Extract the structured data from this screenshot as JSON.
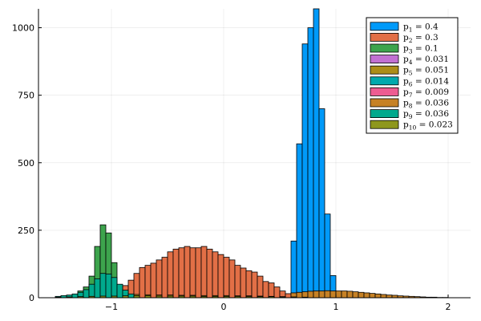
{
  "chart_data": {
    "type": "bar",
    "subtype": "overlaid-histogram",
    "title": "",
    "xlabel": "",
    "ylabel": "",
    "xlim": [
      -1.65,
      2.2
    ],
    "ylim": [
      0,
      1070
    ],
    "xticks": [
      -1,
      0,
      1,
      2
    ],
    "yticks": [
      0,
      250,
      500,
      750,
      1000
    ],
    "xtick_labels": [
      "−1",
      "0",
      "1",
      "2"
    ],
    "ytick_labels": [
      "0",
      "250",
      "500",
      "750",
      "1000"
    ],
    "grid": true,
    "legend_position": "top-right",
    "bin_width": 0.05,
    "series": [
      {
        "name": "p1 = 0.4",
        "label_base": "p",
        "label_sub": "1",
        "label_value": "= 0.4",
        "color": "#009af9",
        "bin_starts": [
          0.6,
          0.65,
          0.7,
          0.75,
          0.8,
          0.85,
          0.9,
          0.95,
          1.0
        ],
        "values": [
          210,
          570,
          940,
          1000,
          1070,
          700,
          310,
          82,
          0
        ]
      },
      {
        "name": "p2 = 0.3",
        "label_base": "p",
        "label_sub": "2",
        "label_value": "= 0.3",
        "color": "#e26f46",
        "bin_starts": [
          -1.0,
          -0.95,
          -0.9,
          -0.85,
          -0.8,
          -0.75,
          -0.7,
          -0.65,
          -0.6,
          -0.55,
          -0.5,
          -0.45,
          -0.4,
          -0.35,
          -0.3,
          -0.25,
          -0.2,
          -0.15,
          -0.1,
          -0.05,
          0.0,
          0.05,
          0.1,
          0.15,
          0.2,
          0.25,
          0.3,
          0.35,
          0.4,
          0.45,
          0.5,
          0.55,
          0.6
        ],
        "values": [
          10,
          30,
          45,
          65,
          90,
          112,
          120,
          128,
          140,
          150,
          170,
          180,
          185,
          190,
          185,
          185,
          190,
          180,
          170,
          160,
          150,
          140,
          120,
          110,
          100,
          95,
          80,
          60,
          55,
          40,
          25,
          15,
          5
        ]
      },
      {
        "name": "p3 = 0.1",
        "label_base": "p",
        "label_sub": "3",
        "label_value": "= 0.1",
        "color": "#3da44d",
        "bin_starts": [
          -1.35,
          -1.3,
          -1.25,
          -1.2,
          -1.15,
          -1.1,
          -1.05,
          -1.0,
          -0.95,
          -0.9,
          -0.85
        ],
        "values": [
          10,
          25,
          40,
          80,
          190,
          270,
          240,
          130,
          45,
          20,
          5
        ]
      },
      {
        "name": "p4 = 0.031",
        "label_base": "p",
        "label_sub": "4",
        "label_value": "= 0.031",
        "color": "#c271d2",
        "bin_starts": [
          -1.3,
          -1.25,
          -1.2,
          -1.15,
          -1.1,
          -1.05,
          -1.0,
          -0.95
        ],
        "values": [
          5,
          12,
          22,
          32,
          30,
          22,
          12,
          5
        ]
      },
      {
        "name": "p5 = 0.051",
        "label_base": "p",
        "label_sub": "5",
        "label_value": "= 0.051",
        "color": "#ac8d18",
        "bin_starts": [
          -1.5,
          -1.4,
          -1.3,
          -1.2,
          -1.1,
          -1.0,
          -0.9,
          -0.8,
          -0.7,
          -0.6,
          -0.5,
          -0.4,
          -0.3,
          -0.2,
          -0.1,
          0.0,
          0.1,
          0.2,
          0.3,
          0.4,
          0.5
        ],
        "values": [
          2,
          4,
          6,
          8,
          10,
          12,
          12,
          12,
          11,
          10,
          10,
          9,
          9,
          8,
          8,
          8,
          7,
          7,
          6,
          5,
          4
        ]
      },
      {
        "name": "p6 = 0.014",
        "label_base": "p",
        "label_sub": "6",
        "label_value": "= 0.014",
        "color": "#00a9ad",
        "bin_starts": [
          -1.45,
          -1.4,
          -1.35,
          -1.3,
          -1.25,
          -1.2,
          -1.15,
          -1.1,
          -1.05,
          -1.0
        ],
        "values": [
          3,
          6,
          8,
          12,
          16,
          18,
          16,
          12,
          8,
          4
        ]
      },
      {
        "name": "p7 = 0.009",
        "label_base": "p",
        "label_sub": "7",
        "label_value": "= 0.009",
        "color": "#ed5d92",
        "bin_starts": [
          -1.4,
          -1.35,
          -1.3,
          -1.25,
          -1.2,
          -1.15,
          -1.1,
          -1.05,
          -1.0
        ],
        "values": [
          4,
          8,
          10,
          14,
          16,
          16,
          12,
          8,
          4
        ]
      },
      {
        "name": "p8 = 0.036",
        "label_base": "p",
        "label_sub": "8",
        "label_value": "= 0.036",
        "color": "#c68125",
        "bin_starts": [
          0.6,
          0.65,
          0.7,
          0.75,
          0.8,
          0.85,
          0.9,
          0.95,
          1.0,
          1.05,
          1.1,
          1.15,
          1.2,
          1.25,
          1.3,
          1.35,
          1.4,
          1.45,
          1.5,
          1.55,
          1.6,
          1.65,
          1.7,
          1.75,
          1.8,
          1.85,
          1.9,
          1.95
        ],
        "values": [
          18,
          20,
          22,
          24,
          25,
          25,
          26,
          25,
          25,
          25,
          24,
          22,
          20,
          18,
          16,
          14,
          12,
          10,
          9,
          7,
          6,
          5,
          4,
          3,
          2,
          2,
          1,
          1
        ]
      },
      {
        "name": "p9 = 0.036",
        "label_base": "p",
        "label_sub": "9",
        "label_value": "= 0.036",
        "color": "#00a98d",
        "bin_starts": [
          -1.5,
          -1.45,
          -1.4,
          -1.35,
          -1.3,
          -1.25,
          -1.2,
          -1.15,
          -1.1,
          -1.05,
          -1.0,
          -0.95,
          -0.9,
          -0.85,
          -0.8
        ],
        "values": [
          5,
          8,
          10,
          14,
          20,
          30,
          50,
          70,
          90,
          88,
          75,
          50,
          28,
          14,
          5
        ]
      },
      {
        "name": "p10 = 0.023",
        "label_base": "p",
        "label_sub": "10",
        "label_value": "= 0.023",
        "color": "#8e971d",
        "bin_starts": [
          -1.5,
          -1.4,
          -1.3,
          -1.2,
          -1.1,
          -1.0,
          -0.9,
          -0.8,
          -0.7,
          -0.6,
          -0.5,
          -0.4,
          -0.3,
          -0.2,
          -0.1,
          0.0,
          0.1,
          0.2,
          0.3,
          0.4,
          0.5,
          0.6,
          0.7
        ],
        "values": [
          2,
          3,
          4,
          5,
          6,
          6,
          7,
          7,
          7,
          6,
          6,
          6,
          6,
          5,
          5,
          5,
          5,
          4,
          4,
          4,
          3,
          3,
          2
        ]
      }
    ]
  }
}
